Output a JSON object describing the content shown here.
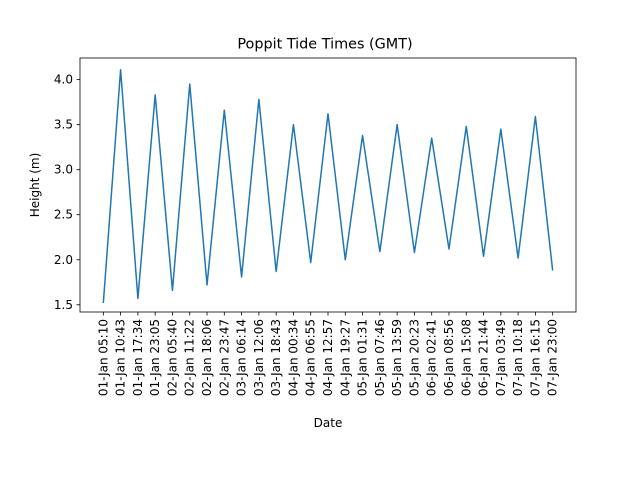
{
  "chart_data": {
    "type": "line",
    "title": "Poppit Tide Times (GMT)",
    "xlabel": "Date",
    "ylabel": "Height (m)",
    "ylim": [
      1.42,
      4.24
    ],
    "yticks": [
      1.5,
      2.0,
      2.5,
      3.0,
      3.5,
      4.0
    ],
    "ytick_labels": [
      "1.5",
      "2.0",
      "2.5",
      "3.0",
      "3.5",
      "4.0"
    ],
    "grid": false,
    "line_color": "#1f77b4",
    "x": [
      "01-Jan 05:10",
      "01-Jan 10:43",
      "01-Jan 17:34",
      "01-Jan 23:05",
      "02-Jan 05:40",
      "02-Jan 11:22",
      "02-Jan 18:06",
      "02-Jan 23:47",
      "03-Jan 06:14",
      "03-Jan 12:06",
      "03-Jan 18:43",
      "04-Jan 00:34",
      "04-Jan 06:55",
      "04-Jan 12:57",
      "04-Jan 19:27",
      "05-Jan 01:31",
      "05-Jan 07:46",
      "05-Jan 13:59",
      "05-Jan 20:23",
      "06-Jan 02:41",
      "06-Jan 08:56",
      "06-Jan 15:08",
      "06-Jan 21:44",
      "07-Jan 03:49",
      "07-Jan 10:18",
      "07-Jan 16:15",
      "07-Jan 23:00"
    ],
    "series": [
      {
        "values": [
          1.52,
          4.11,
          1.57,
          3.83,
          1.66,
          3.95,
          1.72,
          3.66,
          1.81,
          3.78,
          1.87,
          3.5,
          1.97,
          3.62,
          2.0,
          3.38,
          2.09,
          3.5,
          2.08,
          3.35,
          2.12,
          3.48,
          2.04,
          3.45,
          2.02,
          3.59,
          1.88
        ]
      }
    ]
  }
}
